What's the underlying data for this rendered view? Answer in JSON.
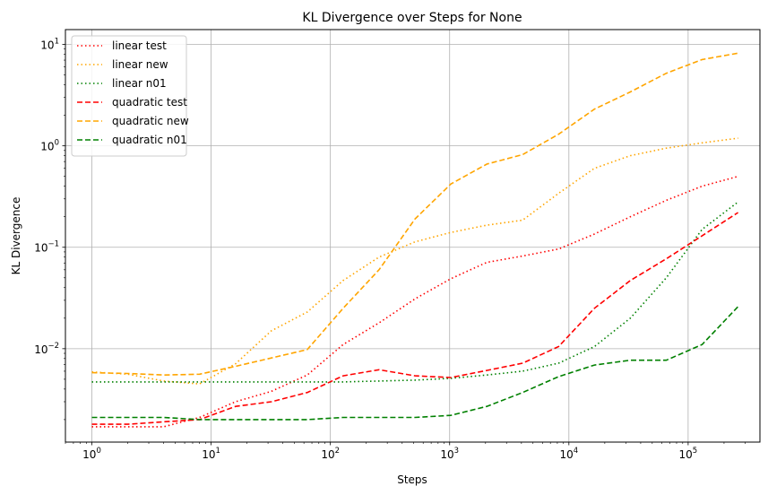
{
  "chart_data": {
    "type": "line",
    "title": "KL Divergence over Steps for None",
    "xlabel": "Steps",
    "ylabel": "KL Divergence",
    "xscale": "log",
    "yscale": "log",
    "xlim": [
      0.6,
      400000
    ],
    "ylim": [
      0.0012,
      14
    ],
    "grid": true,
    "legend_position": "upper-left",
    "x_ticks": [
      {
        "value": 1,
        "base": "10",
        "exp": "0"
      },
      {
        "value": 10,
        "base": "10",
        "exp": "1"
      },
      {
        "value": 100,
        "base": "10",
        "exp": "2"
      },
      {
        "value": 1000,
        "base": "10",
        "exp": "3"
      },
      {
        "value": 10000,
        "base": "10",
        "exp": "4"
      },
      {
        "value": 100000,
        "base": "10",
        "exp": "5"
      }
    ],
    "y_ticks": [
      {
        "value": 0.01,
        "base": "10",
        "exp": "−2"
      },
      {
        "value": 0.1,
        "base": "10",
        "exp": "−1"
      },
      {
        "value": 1,
        "base": "10",
        "exp": "0"
      },
      {
        "value": 10,
        "base": "10",
        "exp": "1"
      }
    ],
    "x": [
      1,
      2,
      4,
      8,
      16,
      32,
      64,
      128,
      256,
      512,
      1024,
      2048,
      4096,
      8192,
      16384,
      32768,
      65536,
      131072,
      262144
    ],
    "series": [
      {
        "name": "linear test",
        "style": "dotted",
        "color": "#ff0000",
        "values": [
          0.0017,
          0.0017,
          0.0017,
          0.0021,
          0.003,
          0.0038,
          0.0055,
          0.011,
          0.018,
          0.031,
          0.049,
          0.071,
          0.082,
          0.096,
          0.135,
          0.2,
          0.29,
          0.4,
          0.5
        ]
      },
      {
        "name": "linear new",
        "style": "dotted",
        "color": "#ffa500",
        "values": [
          0.0059,
          0.0056,
          0.0048,
          0.0045,
          0.0071,
          0.015,
          0.023,
          0.047,
          0.08,
          0.113,
          0.14,
          0.165,
          0.185,
          0.34,
          0.6,
          0.8,
          0.95,
          1.07,
          1.19
        ]
      },
      {
        "name": "linear n01",
        "style": "dotted",
        "color": "#008000",
        "values": [
          0.0047,
          0.0047,
          0.0047,
          0.0047,
          0.0047,
          0.0047,
          0.0047,
          0.0047,
          0.0048,
          0.0049,
          0.0051,
          0.0055,
          0.006,
          0.0072,
          0.0105,
          0.02,
          0.05,
          0.15,
          0.28
        ]
      },
      {
        "name": "quadratic test",
        "style": "dashed",
        "color": "#ff0000",
        "values": [
          0.0018,
          0.0018,
          0.0019,
          0.002,
          0.0027,
          0.003,
          0.0037,
          0.0054,
          0.0062,
          0.0054,
          0.0052,
          0.0061,
          0.0072,
          0.0105,
          0.025,
          0.047,
          0.077,
          0.13,
          0.22
        ]
      },
      {
        "name": "quadratic new",
        "style": "dashed",
        "color": "#ffa500",
        "values": [
          0.0058,
          0.0057,
          0.0055,
          0.0056,
          0.0067,
          0.0081,
          0.0098,
          0.025,
          0.06,
          0.19,
          0.42,
          0.66,
          0.82,
          1.3,
          2.3,
          3.4,
          5.2,
          7.1,
          8.2
        ]
      },
      {
        "name": "quadratic n01",
        "style": "dashed",
        "color": "#008000",
        "values": [
          0.0021,
          0.0021,
          0.0021,
          0.002,
          0.002,
          0.002,
          0.002,
          0.0021,
          0.0021,
          0.0021,
          0.0022,
          0.0027,
          0.0037,
          0.0053,
          0.0069,
          0.0077,
          0.0077,
          0.011,
          0.026
        ]
      }
    ]
  }
}
